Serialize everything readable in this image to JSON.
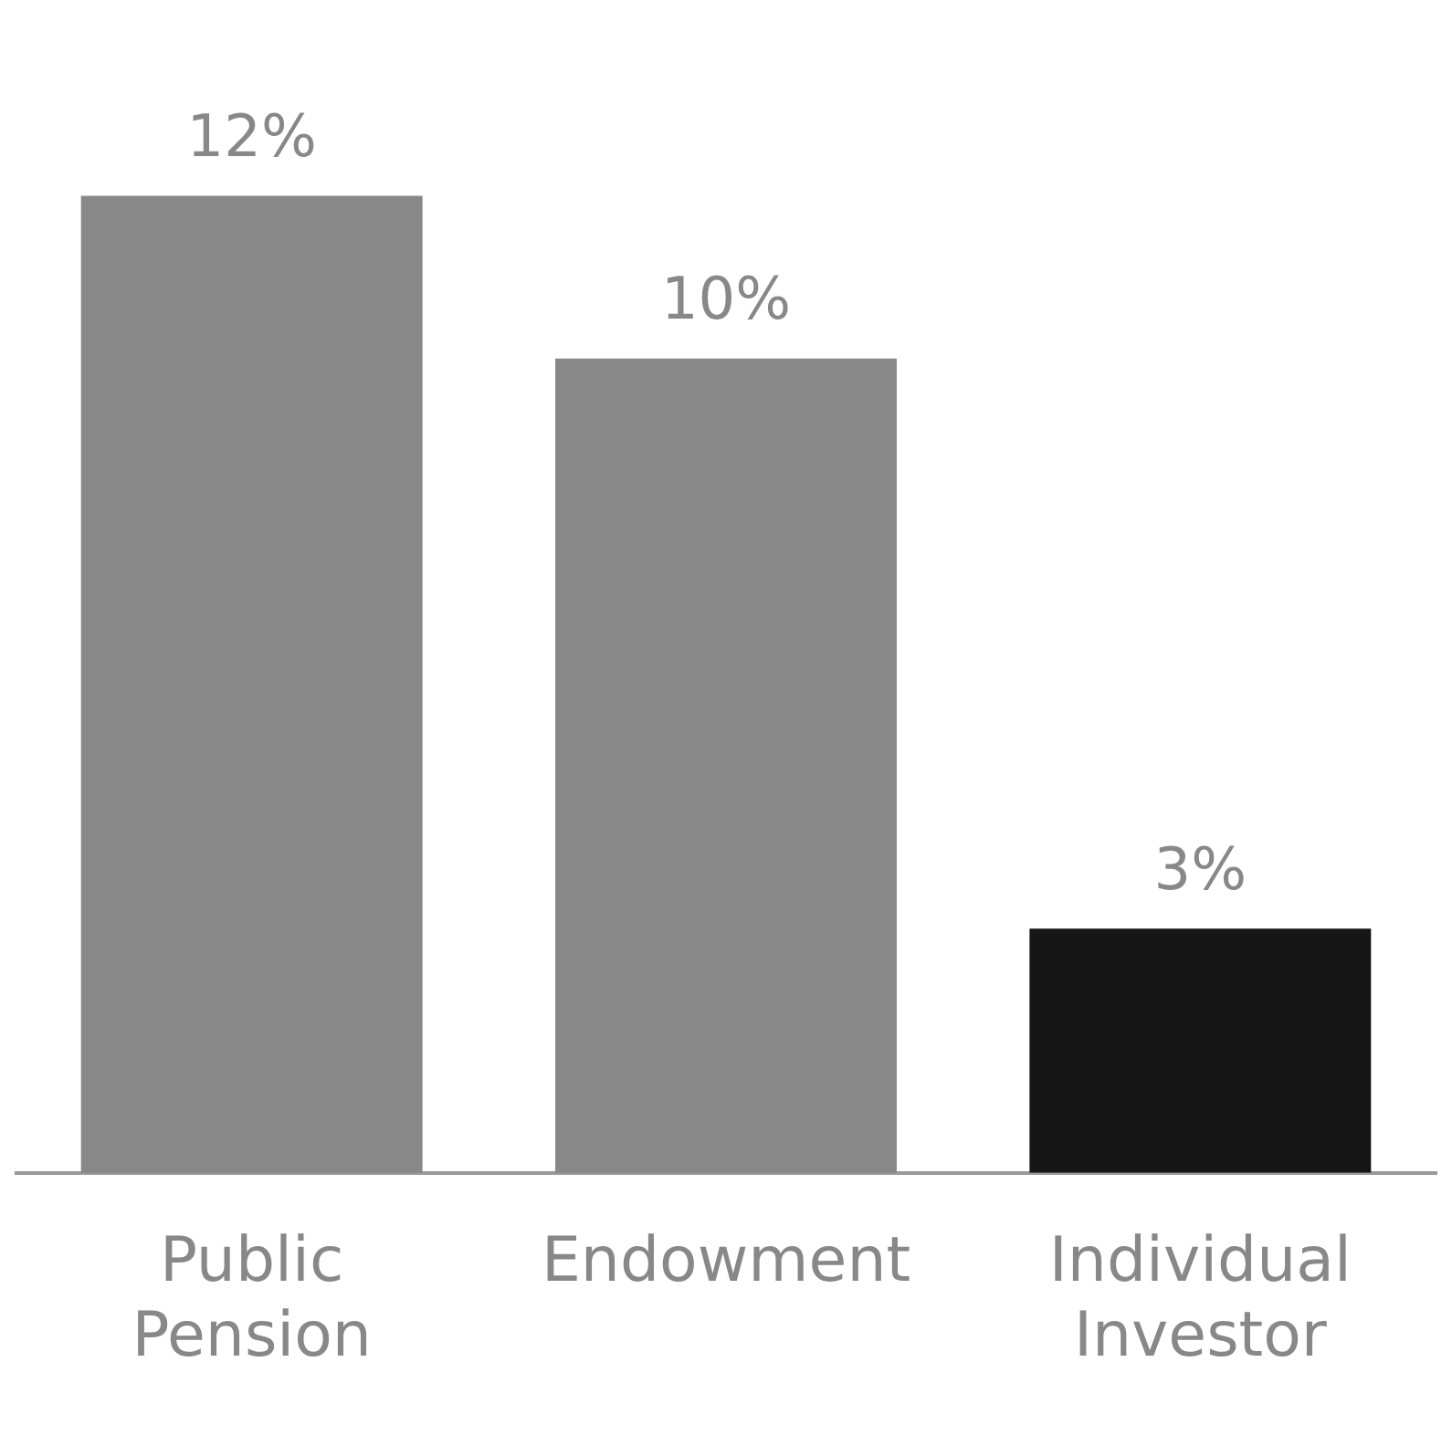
{
  "chart_data": {
    "type": "bar",
    "categories": [
      "Public Pension",
      "Endowment",
      "Individual Investor"
    ],
    "values": [
      12,
      10,
      3
    ],
    "colors": [
      "#888888",
      "#888888",
      "#161616"
    ],
    "value_labels": [
      "12%",
      "10%",
      "3%"
    ],
    "grid": false,
    "legend": false
  }
}
